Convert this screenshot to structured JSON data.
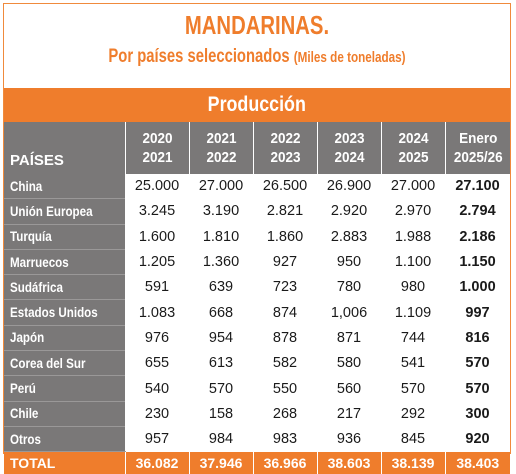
{
  "header": {
    "title": "MANDARINAS.",
    "subtitle_main": "Por países seleccionados",
    "subtitle_unit": "(Miles de toneladas)",
    "band": "Producción"
  },
  "colors": {
    "accent": "#ef7d2c",
    "header_gray": "#7a7878"
  },
  "table": {
    "country_header": "PAÍSES",
    "columns": [
      {
        "line1": "2020",
        "line2": "2021"
      },
      {
        "line1": "2021",
        "line2": "2022"
      },
      {
        "line1": "2022",
        "line2": "2023"
      },
      {
        "line1": "2023",
        "line2": "2024"
      },
      {
        "line1": "2024",
        "line2": "2025"
      },
      {
        "line1": "Enero",
        "line2": "2025/26"
      }
    ],
    "rows": [
      {
        "country": "China",
        "values": [
          "25.000",
          "27.000",
          "26.500",
          "26.900",
          "27.000",
          "27.100"
        ]
      },
      {
        "country": "Unión Europea",
        "values": [
          "3.245",
          "3.190",
          "2.821",
          "2.920",
          "2.970",
          "2.794"
        ]
      },
      {
        "country": "Turquía",
        "values": [
          "1.600",
          "1.810",
          "1.860",
          "2.883",
          "1.988",
          "2.186"
        ]
      },
      {
        "country": "Marruecos",
        "values": [
          "1.205",
          "1.360",
          "927",
          "950",
          "1.100",
          "1.150"
        ]
      },
      {
        "country": "Sudáfrica",
        "values": [
          "591",
          "639",
          "723",
          "780",
          "980",
          "1.000"
        ]
      },
      {
        "country": "Estados Unidos",
        "values": [
          "1.083",
          "668",
          "874",
          "1,006",
          "1.109",
          "997"
        ]
      },
      {
        "country": "Japón",
        "values": [
          "976",
          "954",
          "878",
          "871",
          "744",
          "816"
        ]
      },
      {
        "country": "Corea del Sur",
        "values": [
          "655",
          "613",
          "582",
          "580",
          "541",
          "570"
        ]
      },
      {
        "country": "Perú",
        "values": [
          "540",
          "570",
          "550",
          "560",
          "570",
          "570"
        ]
      },
      {
        "country": "Chile",
        "values": [
          "230",
          "158",
          "268",
          "217",
          "292",
          "300"
        ]
      },
      {
        "country": "Otros",
        "values": [
          "957",
          "984",
          "983",
          "936",
          "845",
          "920"
        ]
      }
    ],
    "total": {
      "label": "TOTAL",
      "values": [
        "36.082",
        "37.946",
        "36.966",
        "38.603",
        "38.139",
        "38.403"
      ]
    }
  }
}
